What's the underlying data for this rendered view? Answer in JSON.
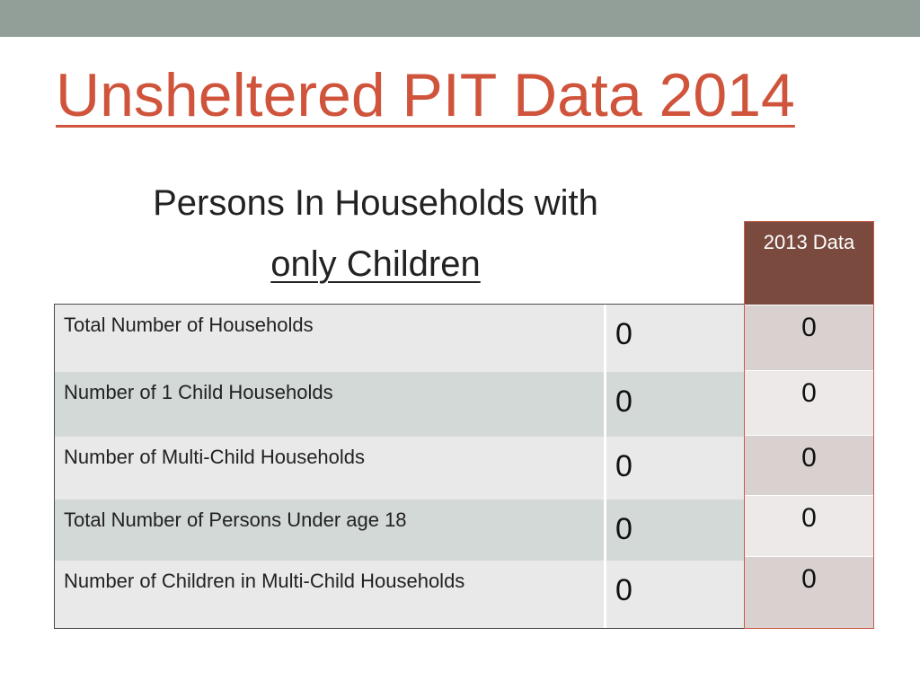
{
  "slide": {
    "title": "Unsheltered PIT Data 2014",
    "subtitle_line1": "Persons In Households with",
    "subtitle_line2": "only Children"
  },
  "table": {
    "column_2013_header": "2013 Data",
    "rows": [
      {
        "label": "Total Number of Households",
        "value_2014": "0",
        "value_2013": "0"
      },
      {
        "label": "Number of 1 Child Households",
        "value_2014": "0",
        "value_2013": "0"
      },
      {
        "label": "Number of Multi-Child Households",
        "value_2014": "0",
        "value_2013": "0"
      },
      {
        "label": "Total Number of Persons Under age 18",
        "value_2014": "0",
        "value_2013": "0"
      },
      {
        "label": "Number of Children in Multi-Child Households",
        "value_2014": "0",
        "value_2013": "0"
      }
    ]
  },
  "colors": {
    "title": "#cf543b",
    "top_bar": "#929e98",
    "header_2013": "#7a4a3f"
  }
}
